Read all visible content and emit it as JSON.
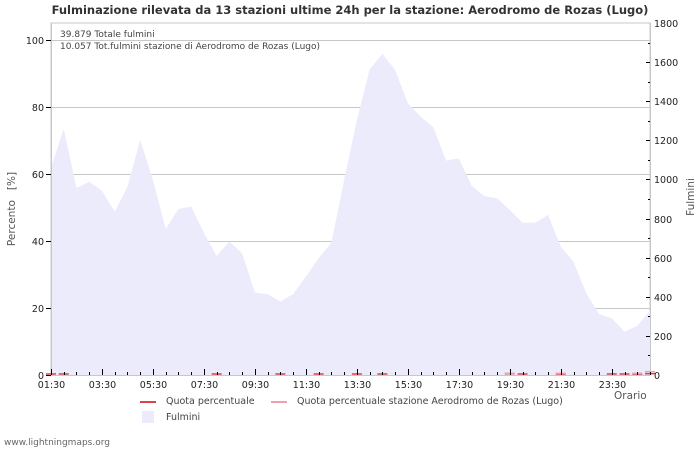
{
  "header": {
    "title": "Fulminazione rilevata da 13 stazioni ultime 24h per la stazione: Aerodromo de Rozas (Lugo)"
  },
  "info": {
    "total": "39.879 Totale fulmini",
    "station_total": "10.057 Tot.fulmini stazione di Aerodromo de Rozas (Lugo)"
  },
  "axes": {
    "left_title": "Percento   [%]",
    "right_title": "Fulmini",
    "x_title": "Orario"
  },
  "legend": {
    "quota": "Quota percentuale",
    "quota_station": "Quota percentuale stazione Aerodromo de Rozas (Lugo)",
    "fulmini": "Fulmini"
  },
  "footer": {
    "source": "www.lightningmaps.org"
  },
  "colors": {
    "area_fill": "#ebebfc",
    "quota": "#d9434b",
    "quota_station": "#f0a0a8",
    "grid": "#c8c8c8",
    "axis": "#000000"
  },
  "chart_data": {
    "type": "area",
    "title": "Fulminazione rilevata da 13 stazioni ultime 24h per la stazione: Aerodromo de Rozas (Lugo)",
    "xlabel": "Orario",
    "ylabel": "Percento [%]",
    "y2label": "Fulmini",
    "ylim": [
      0,
      105
    ],
    "y2lim": [
      0,
      1800
    ],
    "y_ticks": [
      0,
      20,
      40,
      60,
      80,
      100
    ],
    "y2_ticks": [
      0,
      200,
      400,
      600,
      800,
      1000,
      1200,
      1400,
      1600,
      1800
    ],
    "x_tick_labels": [
      "01:30",
      "03:30",
      "05:30",
      "07:30",
      "09:30",
      "11:30",
      "13:30",
      "15:30",
      "17:30",
      "19:30",
      "21:30",
      "23:30"
    ],
    "x_interval_minutes": 30,
    "x_start": "01:30",
    "grid": true,
    "legend_position": "bottom",
    "series": [
      {
        "name": "Fulmini",
        "axis": "right",
        "type": "area",
        "values": [
          1060,
          1258,
          956,
          988,
          942,
          835,
          963,
          1202,
          997,
          747,
          849,
          861,
          726,
          609,
          682,
          622,
          421,
          413,
          375,
          414,
          503,
          597,
          677,
          997,
          1304,
          1563,
          1642,
          1560,
          1389,
          1321,
          1267,
          1096,
          1108,
          968,
          915,
          904,
          844,
          779,
          779,
          818,
          656,
          579,
          418,
          312,
          290,
          221,
          251,
          329
        ]
      },
      {
        "name": "Quota percentuale",
        "axis": "left",
        "type": "line",
        "values": [
          0.3,
          0.3,
          0,
          0,
          0,
          0,
          0,
          0,
          0,
          0,
          0,
          0,
          0,
          0.3,
          0,
          0,
          0,
          0,
          0.3,
          0,
          0,
          0.3,
          0,
          0,
          0.3,
          0,
          0.3,
          0,
          0,
          0,
          0,
          0,
          0,
          0,
          0,
          0,
          0.4,
          0.3,
          0,
          0,
          0.3,
          0,
          0,
          0,
          0.3,
          0.3,
          0.3,
          0.4
        ]
      },
      {
        "name": "Quota percentuale stazione Aerodromo de Rozas (Lugo)",
        "axis": "left",
        "type": "line",
        "values": [
          0,
          0,
          0,
          0,
          0,
          0,
          0,
          0,
          0,
          0,
          0,
          0,
          0,
          0,
          0,
          0,
          0,
          0,
          0,
          0,
          0,
          0,
          0,
          0,
          0,
          0,
          0,
          0,
          0,
          0,
          0,
          0,
          0,
          0,
          0,
          0,
          0.5,
          0,
          0,
          0,
          0.5,
          0,
          0,
          0,
          0,
          0,
          0.5,
          1.0
        ]
      }
    ]
  }
}
